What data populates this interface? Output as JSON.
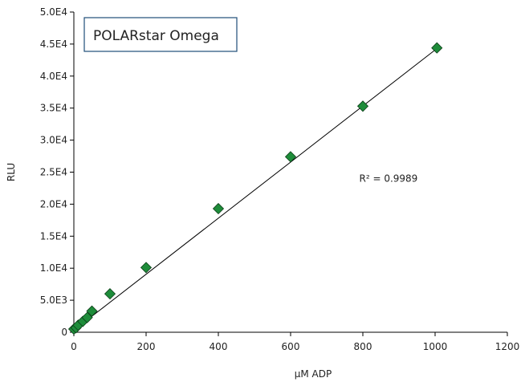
{
  "chart_data": {
    "type": "scatter",
    "title": "",
    "legend_box_text": "POLARstar Omega",
    "xlabel": "µM ADP",
    "ylabel": "RLU",
    "xlim": [
      0,
      1200
    ],
    "ylim": [
      0,
      50000
    ],
    "x_ticks": [
      0,
      200,
      400,
      600,
      800,
      1000,
      1200
    ],
    "x_tick_labels": [
      "0",
      "200",
      "400",
      "600",
      "800",
      "1000",
      "1200"
    ],
    "y_ticks": [
      0,
      5000,
      10000,
      15000,
      20000,
      25000,
      30000,
      35000,
      40000,
      45000,
      50000
    ],
    "y_tick_labels": [
      "0",
      "5.0E3",
      "1.0E4",
      "1.5E4",
      "2.0E4",
      "2.5E4",
      "3.0E4",
      "3.5E4",
      "4.0E4",
      "4.5E4",
      "5.0E4"
    ],
    "grid": false,
    "marker": "diamond",
    "marker_color": "#1e8c3a",
    "series": [
      {
        "points": [
          {
            "x": 0,
            "y": 500
          },
          {
            "x": 6,
            "y": 700
          },
          {
            "x": 12,
            "y": 1100
          },
          {
            "x": 25,
            "y": 1700
          },
          {
            "x": 37,
            "y": 2300
          },
          {
            "x": 50,
            "y": 3300
          },
          {
            "x": 100,
            "y": 6000
          },
          {
            "x": 200,
            "y": 10100
          },
          {
            "x": 400,
            "y": 19300
          },
          {
            "x": 600,
            "y": 27400
          },
          {
            "x": 800,
            "y": 35300
          },
          {
            "x": 1005,
            "y": 44400
          }
        ]
      }
    ],
    "trendline": {
      "x_start": 0,
      "y_start": 300,
      "x_end": 1005,
      "y_end": 44300
    },
    "annotation": {
      "text": "R² = 0.9989",
      "x": 790,
      "y": 23500
    }
  }
}
